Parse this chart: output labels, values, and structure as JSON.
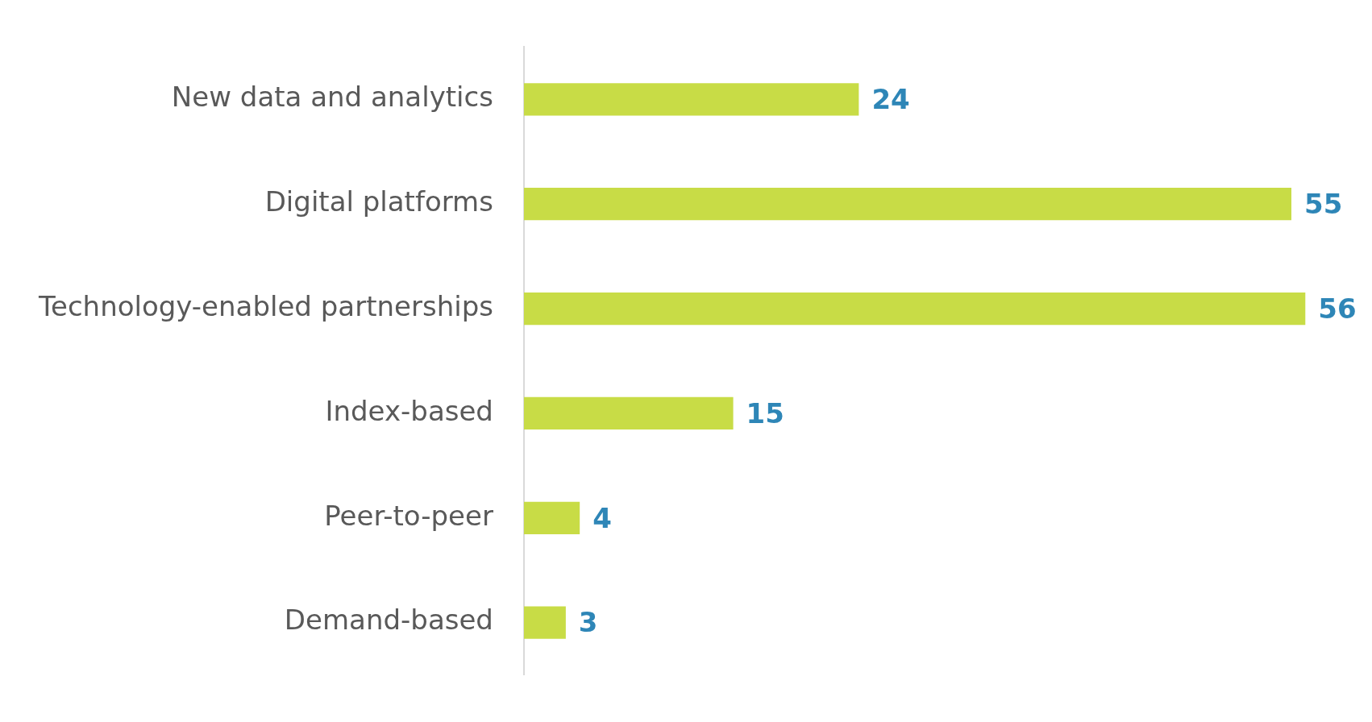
{
  "chart_data": {
    "type": "bar",
    "orientation": "horizontal",
    "categories": [
      "New data and analytics",
      "Digital platforms",
      "Technology-enabled partnerships",
      "Index-based",
      "Peer-to-peer",
      "Demand-based"
    ],
    "values": [
      24,
      55,
      56,
      15,
      4,
      3
    ],
    "color": "#c8dc46",
    "data_labels": true,
    "grid": false,
    "legend": false
  }
}
